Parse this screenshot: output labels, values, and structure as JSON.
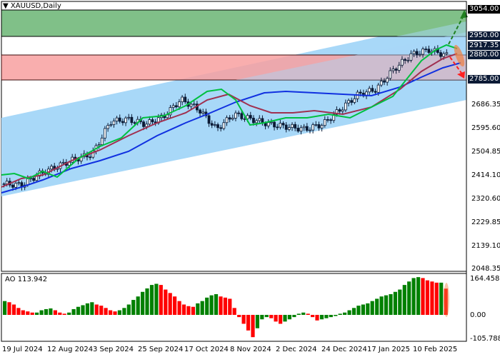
{
  "header": {
    "symbol_title": "XAUUSD,Daily"
  },
  "price_axis": {
    "ticks": [
      "2686.35",
      "2595.60",
      "2504.85",
      "2414.10",
      "2320.60",
      "2229.85",
      "2139.10",
      "2048.35"
    ],
    "highlighted": [
      {
        "value": "3054.00",
        "style": "black"
      },
      {
        "value": "2950.00",
        "style": "navy"
      },
      {
        "value": "2917.35",
        "style": "navy"
      },
      {
        "value": "2880.00",
        "style": "navy"
      },
      {
        "value": "2785.00",
        "style": "navy"
      }
    ]
  },
  "ao_panel": {
    "label": "AO 113.942",
    "ticks": [
      "164.458",
      "0.00",
      "-105.788"
    ]
  },
  "time_axis": {
    "labels": [
      "19 Jul 2024",
      "12 Aug 2024",
      "3 Sep 2024",
      "25 Sep 2024",
      "17 Oct 2024",
      "8 Nov 2024",
      "2 Dec 2024",
      "24 Dec 2024",
      "17 Jan 2025",
      "10 Feb 2025"
    ]
  },
  "colors": {
    "green_zone": "#80c088",
    "red_zone": "#f8a0a0",
    "channel": "#a8d8f8",
    "ma_fast": "#00c040",
    "ma_mid": "#a03050",
    "ma_slow": "#1030e0",
    "ao_up": "#008000",
    "ao_down": "#ff0000",
    "candle": "#0b1a35"
  },
  "chart_data": [
    {
      "type": "candlestick",
      "title": "XAUUSD,Daily",
      "x_labels": [
        "19 Jul 2024",
        "12 Aug 2024",
        "3 Sep 2024",
        "25 Sep 2024",
        "17 Oct 2024",
        "8 Nov 2024",
        "2 Dec 2024",
        "24 Dec 2024",
        "17 Jan 2025",
        "10 Feb 2025"
      ],
      "ylim": [
        2048.35,
        3090
      ],
      "y_ticks": [
        2686.35,
        2595.6,
        2504.85,
        2414.1,
        2320.6,
        2229.85,
        2139.1,
        2048.35
      ],
      "levels": {
        "target_up": 3054.0,
        "resistance": 2950.0,
        "current": 2917.35,
        "support": 2880.0,
        "target_down": 2785.0
      },
      "zones": [
        {
          "name": "buy-target-zone",
          "from": 2950.0,
          "to": 3054.0,
          "color": "green"
        },
        {
          "name": "sell-zone",
          "from": 2785.0,
          "to": 2880.0,
          "color": "red"
        }
      ],
      "approx_close_path": [
        2400,
        2395,
        2440,
        2470,
        2500,
        2520,
        2650,
        2660,
        2640,
        2670,
        2740,
        2700,
        2620,
        2680,
        2660,
        2640,
        2630,
        2620,
        2640,
        2700,
        2760,
        2780,
        2860,
        2920,
        2940,
        2917
      ],
      "series": [
        {
          "name": "MA fast (green)",
          "values": [
            2420,
            2430,
            2450,
            2500,
            2560,
            2650,
            2680,
            2700,
            2640,
            2650,
            2660,
            2640,
            2650,
            2720,
            2800,
            2900,
            2917
          ]
        },
        {
          "name": "MA mid (maroon)",
          "values": [
            2380,
            2410,
            2440,
            2480,
            2540,
            2620,
            2670,
            2700,
            2680,
            2660,
            2650,
            2640,
            2650,
            2690,
            2760,
            2850,
            2890
          ]
        },
        {
          "name": "MA slow (blue)",
          "values": [
            2350,
            2380,
            2420,
            2460,
            2510,
            2580,
            2630,
            2660,
            2660,
            2660,
            2650,
            2640,
            2640,
            2670,
            2720,
            2800,
            2860
          ]
        }
      ]
    },
    {
      "type": "bar",
      "title": "AO 113.942",
      "ylim": [
        -105.788,
        164.458
      ],
      "approx_values": [
        60,
        55,
        45,
        30,
        20,
        15,
        10,
        10,
        20,
        25,
        28,
        20,
        10,
        5,
        10,
        25,
        35,
        42,
        50,
        55,
        45,
        40,
        30,
        20,
        15,
        20,
        30,
        45,
        65,
        80,
        100,
        115,
        130,
        135,
        130,
        110,
        95,
        80,
        60,
        45,
        38,
        35,
        50,
        60,
        75,
        85,
        90,
        80,
        75,
        70,
        30,
        -10,
        -40,
        -70,
        -100,
        -60,
        -20,
        -10,
        -15,
        -30,
        -40,
        -30,
        -20,
        -10,
        5,
        10,
        5,
        -10,
        -25,
        -20,
        -15,
        -10,
        -5,
        5,
        10,
        20,
        30,
        40,
        45,
        50,
        60,
        70,
        80,
        85,
        90,
        100,
        110,
        130,
        145,
        160,
        164,
        160,
        150,
        145,
        140,
        140,
        114
      ],
      "colors_rule": "green when rising, red when falling"
    }
  ]
}
